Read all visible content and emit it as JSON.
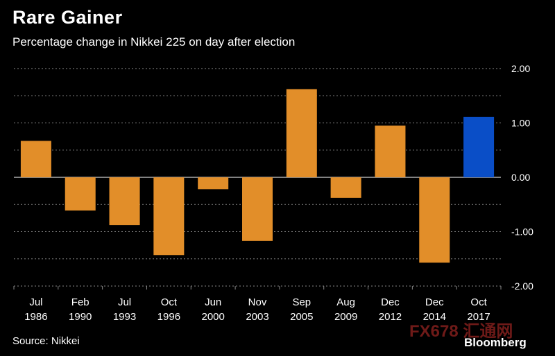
{
  "chart_data": {
    "type": "bar",
    "title": "Rare Gainer",
    "subtitle": "Percentage change in Nikkei 225 on day after election",
    "categories": [
      [
        "Jul",
        "1986"
      ],
      [
        "Feb",
        "1990"
      ],
      [
        "Jul",
        "1993"
      ],
      [
        "Oct",
        "1996"
      ],
      [
        "Jun",
        "2000"
      ],
      [
        "Nov",
        "2003"
      ],
      [
        "Sep",
        "2005"
      ],
      [
        "Aug",
        "2009"
      ],
      [
        "Dec",
        "2012"
      ],
      [
        "Dec",
        "2014"
      ],
      [
        "Oct",
        "2017"
      ]
    ],
    "values": [
      0.67,
      -0.61,
      -0.88,
      -1.43,
      -0.22,
      -1.17,
      1.62,
      -0.38,
      0.95,
      -1.57,
      1.11
    ],
    "highlight_index": 10,
    "colors": {
      "default": "#E28E29",
      "highlight": "#0A4EC7",
      "grid": "#8a8a8a",
      "background": "#000000"
    },
    "ylim": [
      -2,
      2
    ],
    "yticks": [
      "2.00",
      "1.00",
      "0.00",
      "-1.00",
      "-2.00"
    ],
    "y_axis_position": "right",
    "grid": true
  },
  "source": "Source: Nikkei",
  "logo_text": "Bloomberg",
  "watermark_text": "FX678 汇通网"
}
